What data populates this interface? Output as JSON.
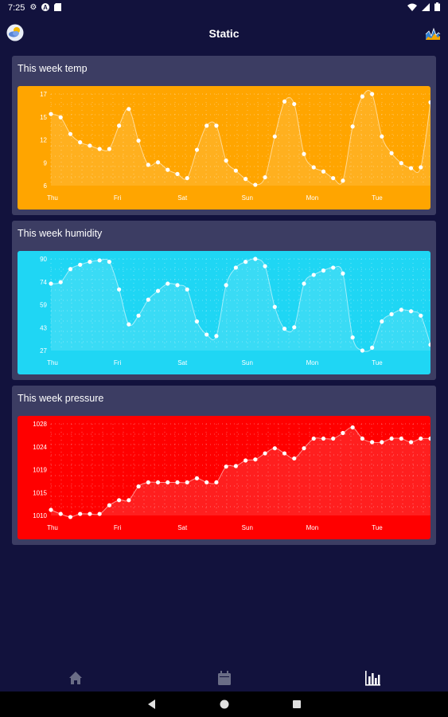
{
  "status_bar": {
    "time": "7:25"
  },
  "app_bar": {
    "title": "Static"
  },
  "cards": [
    {
      "title": "This week temp",
      "color": "#ffa500",
      "chart_data": {
        "type": "area",
        "title": "This week temp",
        "x_tick_labels": [
          "Thu",
          "Fri",
          "Sat",
          "Sun",
          "Mon",
          "Tue"
        ],
        "y_tick_labels": [
          "17",
          "15",
          "12",
          "9",
          "6"
        ],
        "ylim": [
          6,
          17
        ],
        "grid": true,
        "values": [
          14.6,
          14.2,
          12.2,
          11.2,
          10.8,
          10.4,
          10.4,
          13.2,
          15.2,
          11.4,
          8.5,
          8.8,
          7.9,
          7.4,
          6.9,
          10.3,
          13.2,
          13.2,
          9.0,
          7.8,
          6.8,
          6.1,
          7.0,
          11.9,
          16.1,
          15.8,
          9.8,
          8.2,
          7.7,
          6.9,
          6.6,
          13.1,
          16.7,
          17.0,
          11.9,
          9.9,
          8.7,
          8.1,
          8.2,
          16.0
        ]
      }
    },
    {
      "title": "This week humidity",
      "color": "#1fd6f4",
      "chart_data": {
        "type": "area",
        "title": "This week humidity",
        "x_tick_labels": [
          "Thu",
          "Fri",
          "Sat",
          "Sun",
          "Mon",
          "Tue"
        ],
        "y_tick_labels": [
          "90",
          "74",
          "59",
          "43",
          "27"
        ],
        "ylim": [
          27,
          90
        ],
        "grid": true,
        "values": [
          73,
          74,
          83,
          86,
          88,
          89,
          88,
          69,
          45,
          51,
          62,
          68,
          73,
          72,
          69,
          47,
          38,
          37,
          72,
          84,
          88,
          90,
          85,
          57,
          42,
          43,
          73,
          79,
          82,
          84,
          80,
          36,
          27,
          29,
          47,
          52,
          55,
          54,
          51,
          31
        ]
      }
    },
    {
      "title": "This week pressure",
      "color": "#ff0000",
      "chart_data": {
        "type": "area",
        "title": "This week pressure",
        "x_tick_labels": [
          "Thu",
          "Fri",
          "Sat",
          "Sun",
          "Mon",
          "Tue"
        ],
        "y_tick_labels": [
          "1028",
          "1024",
          "1019",
          "1015",
          "1010"
        ],
        "ylim": [
          1010,
          1028
        ],
        "grid": true,
        "values": [
          1011.1,
          1010.3,
          1009.7,
          1010.3,
          1010.3,
          1010.3,
          1012.0,
          1013.0,
          1013.0,
          1015.7,
          1016.5,
          1016.5,
          1016.5,
          1016.5,
          1016.5,
          1017.3,
          1016.5,
          1016.5,
          1019.6,
          1019.7,
          1020.8,
          1021.0,
          1022.2,
          1023.2,
          1022.2,
          1021.2,
          1023.2,
          1025.1,
          1025.1,
          1025.1,
          1026.2,
          1027.3,
          1025.1,
          1024.4,
          1024.4,
          1025.1,
          1025.1,
          1024.4,
          1025.1,
          1025.1
        ]
      }
    }
  ],
  "bottom_nav": {
    "items": [
      {
        "icon": "home-icon"
      },
      {
        "icon": "calendar-icon"
      },
      {
        "icon": "bar-chart-icon"
      }
    ]
  },
  "system_nav": {
    "icons": [
      "back-icon",
      "home-circle-icon",
      "recents-icon"
    ]
  }
}
